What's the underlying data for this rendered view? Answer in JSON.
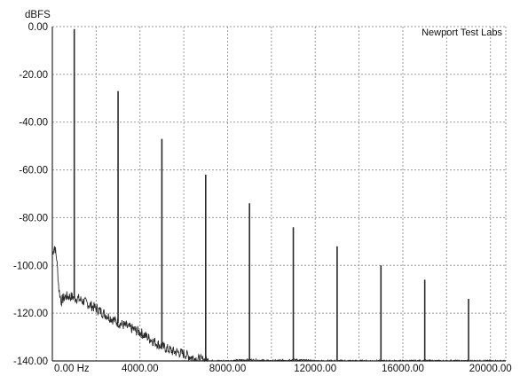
{
  "chart_data": {
    "type": "line",
    "title": "",
    "ylabel": "dBFS",
    "xlabel": "",
    "watermark": "Newport Test Labs",
    "xlim": [
      0,
      20700
    ],
    "ylim": [
      -140,
      0
    ],
    "grid": true,
    "grid_style": "dotted",
    "legend": "none",
    "y_ticks": [
      {
        "value": 0,
        "label": "0.00"
      },
      {
        "value": -20,
        "label": "-20.00"
      },
      {
        "value": -40,
        "label": "-40.00"
      },
      {
        "value": -60,
        "label": "-60.00"
      },
      {
        "value": -80,
        "label": "-80.00"
      },
      {
        "value": -100,
        "label": "-100.00"
      },
      {
        "value": -120,
        "label": "-120.00"
      },
      {
        "value": -140,
        "label": "-140.00"
      }
    ],
    "x_ticks": [
      {
        "value": 0,
        "label": "0.00 Hz"
      },
      {
        "value": 4000,
        "label": "4000.00"
      },
      {
        "value": 8000,
        "label": "8000.00"
      },
      {
        "value": 12000,
        "label": "12000.00"
      },
      {
        "value": 16000,
        "label": "16000.00"
      },
      {
        "value": 20000,
        "label": "20000.00"
      }
    ],
    "x_gridlines": [
      0,
      2000,
      4000,
      6000,
      8000,
      10000,
      12000,
      14000,
      16000,
      18000,
      20000
    ],
    "harmonics": {
      "x": [
        1000,
        3000,
        5000,
        7000,
        9000,
        11000,
        13000,
        15000,
        17000,
        19000
      ],
      "y": [
        -1,
        -27,
        -47,
        -62,
        -74,
        -84,
        -92,
        -100,
        -106,
        -114
      ]
    },
    "noise_floor": {
      "x": [
        0,
        100,
        200,
        300,
        400,
        600,
        800,
        1200,
        1600,
        2000,
        2500,
        3000,
        3500,
        4000,
        4500,
        5000,
        5500,
        6000,
        6500,
        7000,
        8000,
        9000,
        10000,
        11000,
        12000,
        13000,
        14000,
        15000,
        16000,
        17000,
        18000,
        19000,
        20000,
        20700
      ],
      "y": [
        -95,
        -92,
        -97,
        -110,
        -115,
        -113,
        -113,
        -114,
        -116,
        -118,
        -121,
        -124,
        -126,
        -128,
        -131,
        -134,
        -136,
        -137,
        -139,
        -140,
        -140,
        -139.5,
        -140,
        -139.5,
        -140,
        -140,
        -140,
        -140,
        -140,
        -140,
        -140,
        -140,
        -140,
        -140
      ]
    },
    "colors": {
      "trace": "#2a2a2a",
      "grid": "#9a9a9a",
      "axis": "#2a2a2a",
      "background": "#ffffff"
    }
  }
}
